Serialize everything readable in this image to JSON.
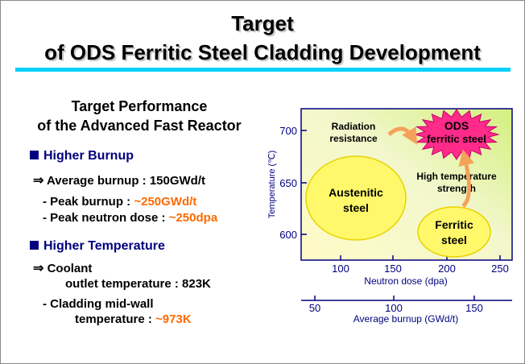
{
  "slide": {
    "title_line1": "Target",
    "title_line2": "of ODS Ferritic Steel Cladding Development"
  },
  "left": {
    "target_perf_line1": "Target Performance",
    "target_perf_line2": "of the Advanced Fast Reactor",
    "burnup": {
      "heading": "Higher Burnup",
      "arrow": "⇒",
      "avg_burnup": "Average burnup : 150GWd/t",
      "peak_burnup_label": "- Peak burnup :",
      "peak_burnup_value": "~250GWd/t",
      "peak_dose_label": "- Peak neutron dose :",
      "peak_dose_value": "~250dpa"
    },
    "temperature": {
      "heading": "Higher Temperature",
      "arrow": "⇒",
      "coolant_label": "Coolant",
      "coolant_outlet": "outlet temperature : 823K",
      "cladding_label": "- Cladding mid-wall",
      "cladding_temp_label": "temperature :",
      "cladding_temp_value": "~973K"
    }
  },
  "diagram": {
    "y_axis_label": "Temperature (℃)",
    "y_ticks": [
      "700",
      "650",
      "600"
    ],
    "x_axis_label": "Neutron dose (dpa)",
    "x_ticks": [
      "100",
      "150",
      "200",
      "250"
    ],
    "x2_axis_label": "Average burnup (GWd/t)",
    "x2_ticks": [
      "50",
      "100",
      "150"
    ],
    "austenitic": "Austenitic steel",
    "austenitic_line1": "Austenitic",
    "austenitic_line2": "steel",
    "ferritic_line1": "Ferritic",
    "ferritic_line2": "steel",
    "ods_line1": "ODS",
    "ods_line2": "ferritic steel",
    "radiation_line1": "Radiation",
    "radiation_line2": "resistance",
    "hightemp_line1": "High temperature",
    "hightemp_line2": "strength",
    "colors": {
      "bubble": "#fff86a",
      "starburst": "#ff2a8a",
      "arrow": "#f4a15a",
      "axis": "#000080",
      "accent": "#ff6a00"
    }
  }
}
